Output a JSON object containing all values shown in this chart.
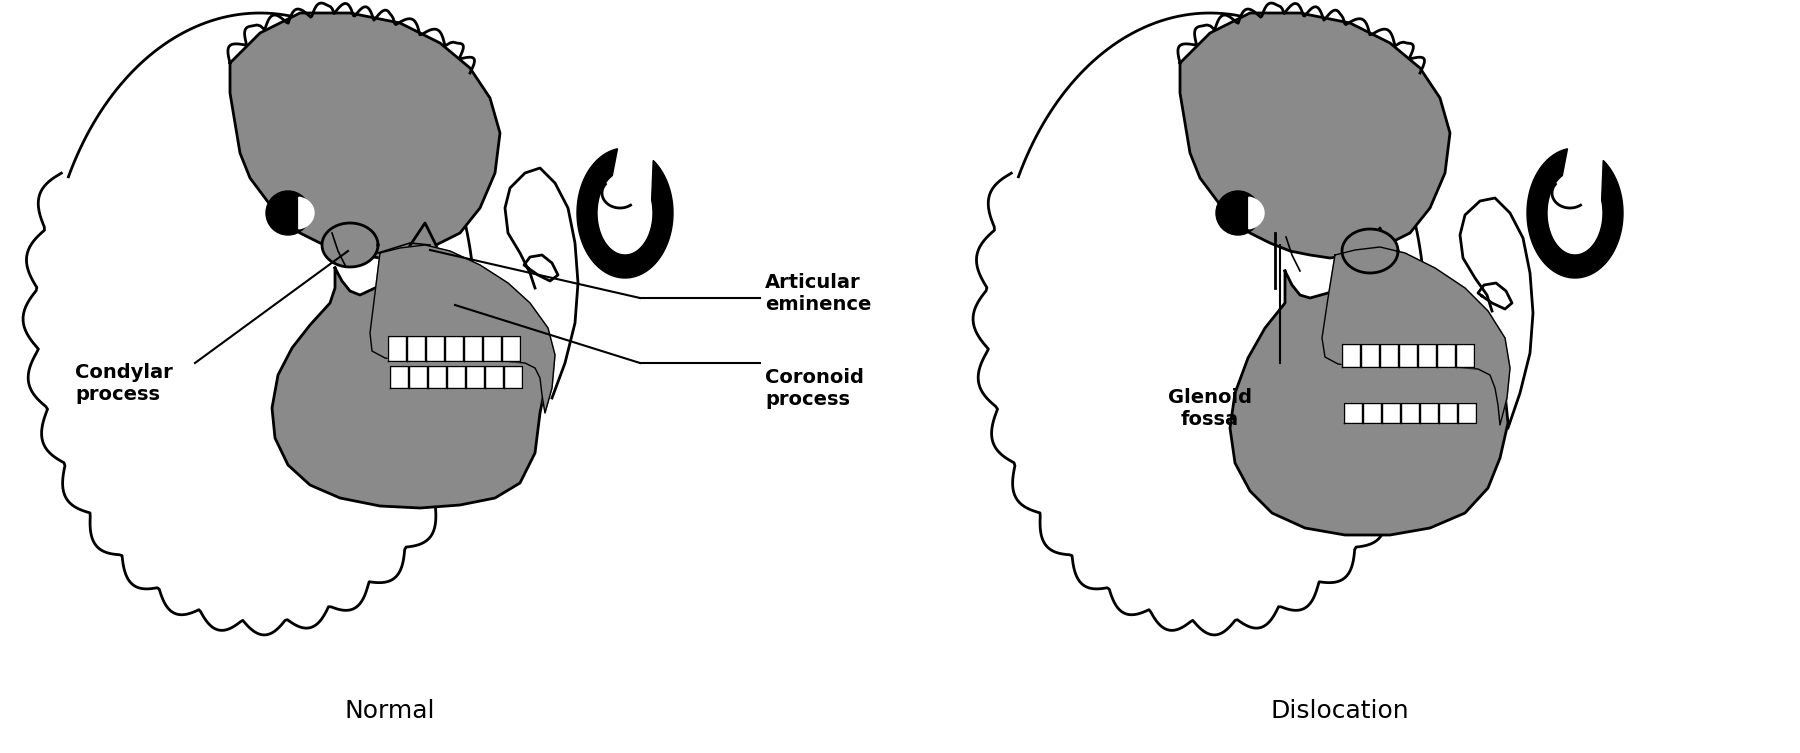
{
  "background_color": "#ffffff",
  "gray": "#8a8a8a",
  "black": "#000000",
  "white": "#ffffff",
  "lw_main": 2.0,
  "lw_thin": 1.2,
  "lw_teeth": 1.0,
  "label_fontsize": 14,
  "title_fontsize": 18,
  "figsize": [
    18.0,
    7.53
  ],
  "dpi": 100,
  "labels": {
    "normal": "Normal",
    "dislocation": "Dislocation",
    "condylar_process": "Condylar\nprocess",
    "articular_eminence": "Articular\neminence",
    "coronoid_process": "Coronoid\nprocess",
    "glenoid_fossa": "Glenoid\nfossa"
  }
}
